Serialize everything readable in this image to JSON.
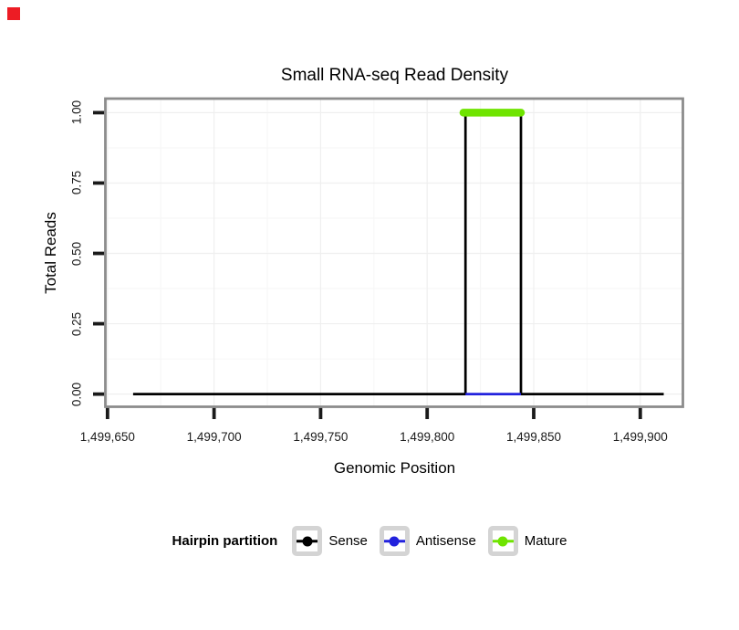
{
  "marker": {
    "color": "#ED1C24"
  },
  "chart_data": {
    "type": "line",
    "title": "Small RNA-seq Read Density",
    "xlabel": "Genomic Position",
    "ylabel": "Total Reads",
    "x_ticks": [
      1499650,
      1499700,
      1499750,
      1499800,
      1499850,
      1499900
    ],
    "x_tick_labels": [
      "1,499,650",
      "1,499,700",
      "1,499,750",
      "1,499,800",
      "1,499,850",
      "1,499,900"
    ],
    "x_minor_ticks": [
      1499675,
      1499725,
      1499775,
      1499825,
      1499875
    ],
    "y_ticks": [
      0,
      0.25,
      0.5,
      0.75,
      1
    ],
    "y_tick_labels": [
      "0.00",
      "0.25",
      "0.50",
      "0.75",
      "1.00"
    ],
    "y_minor_ticks": [
      0.125,
      0.375,
      0.625,
      0.875
    ],
    "xlim": [
      1499649,
      1499920
    ],
    "ylim": [
      -0.045,
      1.05
    ],
    "grid": true,
    "legend_position": "bottom",
    "legend_title": "Hairpin partition",
    "series": [
      {
        "name": "Sense",
        "color": "#000000",
        "style": "line",
        "width": 2.7,
        "points": [
          [
            1499662,
            0
          ],
          [
            1499818,
            0
          ],
          [
            1499818,
            1
          ],
          [
            1499844,
            1
          ],
          [
            1499844,
            0
          ],
          [
            1499911,
            0
          ]
        ]
      },
      {
        "name": "Antisense",
        "color": "#2222DD",
        "style": "line",
        "width": 2.7,
        "points": [
          [
            1499818,
            0
          ],
          [
            1499844,
            0
          ]
        ]
      },
      {
        "name": "Mature",
        "color": "#6FE400",
        "style": "thick-line",
        "width": 8.5,
        "points": [
          [
            1499817,
            1
          ],
          [
            1499844,
            1
          ]
        ]
      }
    ]
  },
  "legend": {
    "title": "Hairpin partition",
    "entries": [
      {
        "label": "Sense",
        "color": "#000000"
      },
      {
        "label": "Antisense",
        "color": "#2222DD"
      },
      {
        "label": "Mature",
        "color": "#6FE400"
      }
    ]
  },
  "colors": {
    "panel_border": "#8C8C8C",
    "tick": "#1A1A1A",
    "grid_major": "#EFEFEF",
    "grid_minor": "#F6F6F6"
  }
}
